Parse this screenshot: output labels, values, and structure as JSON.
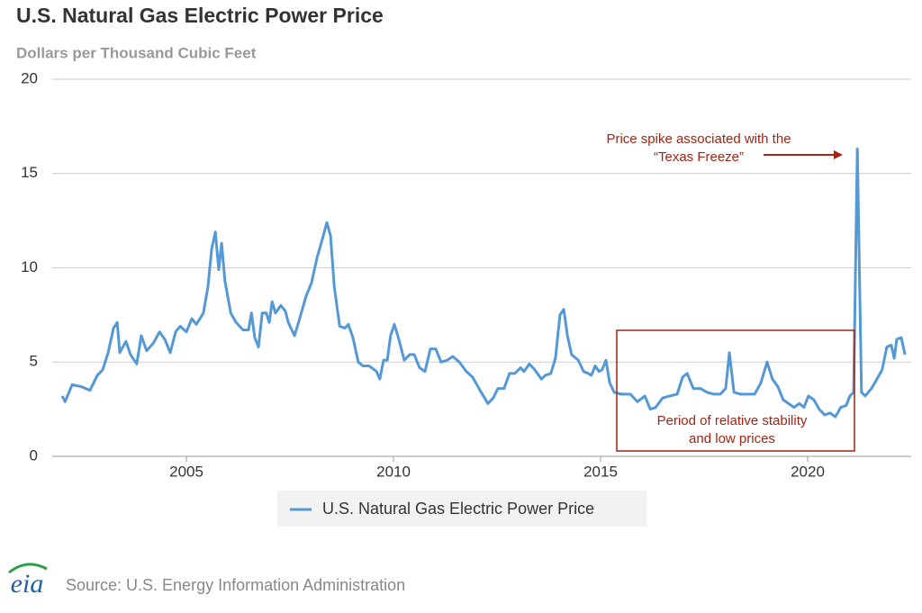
{
  "chart_data": {
    "type": "line",
    "title": "U.S. Natural Gas Electric Power Price",
    "subtitle": "Dollars per Thousand Cubic Feet",
    "source": "Source: U.S. Energy Information Administration",
    "logo": "eia",
    "annotations": [
      {
        "lines": [
          "Price spike associated with the",
          "“Texas Freeze”"
        ],
        "color": "#a32412"
      },
      {
        "lines": [
          "Period of relative stability",
          "and low prices"
        ],
        "color": "#a32412"
      }
    ],
    "xlim": [
      2001.76,
      2022.5
    ],
    "xticks": [
      2005,
      2010,
      2015,
      2020
    ],
    "ylim": [
      0,
      20
    ],
    "yticks": [
      0,
      5,
      10,
      15,
      20
    ],
    "grid": true,
    "legend": "bottom",
    "x": [
      2002.0,
      2002.07,
      2002.24,
      2002.46,
      2002.67,
      2002.85,
      2002.98,
      2003.11,
      2003.24,
      2003.33,
      2003.39,
      2003.54,
      2003.65,
      2003.8,
      2003.91,
      2004.04,
      2004.2,
      2004.35,
      2004.48,
      2004.61,
      2004.74,
      2004.85,
      2005.0,
      2005.13,
      2005.24,
      2005.41,
      2005.52,
      2005.61,
      2005.7,
      2005.78,
      2005.85,
      2005.93,
      2006.07,
      2006.2,
      2006.37,
      2006.5,
      2006.57,
      2006.65,
      2006.74,
      2006.83,
      2006.93,
      2007.0,
      2007.07,
      2007.15,
      2007.28,
      2007.39,
      2007.46,
      2007.61,
      2007.72,
      2007.89,
      2008.02,
      2008.15,
      2008.28,
      2008.39,
      2008.48,
      2008.57,
      2008.7,
      2008.83,
      2008.91,
      2009.02,
      2009.15,
      2009.26,
      2009.41,
      2009.59,
      2009.67,
      2009.76,
      2009.85,
      2009.93,
      2010.02,
      2010.13,
      2010.26,
      2010.39,
      2010.5,
      2010.63,
      2010.76,
      2010.89,
      2011.02,
      2011.15,
      2011.3,
      2011.43,
      2011.59,
      2011.76,
      2011.91,
      2012.09,
      2012.2,
      2012.28,
      2012.41,
      2012.52,
      2012.67,
      2012.8,
      2012.93,
      2013.07,
      2013.15,
      2013.28,
      2013.41,
      2013.57,
      2013.67,
      2013.8,
      2013.91,
      2014.02,
      2014.11,
      2014.2,
      2014.3,
      2014.46,
      2014.59,
      2014.7,
      2014.78,
      2014.87,
      2014.96,
      2015.04,
      2015.13,
      2015.22,
      2015.33,
      2015.5,
      2015.72,
      2015.89,
      2016.07,
      2016.2,
      2016.33,
      2016.5,
      2016.67,
      2016.85,
      2016.98,
      2017.09,
      2017.24,
      2017.41,
      2017.57,
      2017.72,
      2017.89,
      2018.02,
      2018.11,
      2018.22,
      2018.37,
      2018.54,
      2018.72,
      2018.87,
      2019.02,
      2019.15,
      2019.28,
      2019.41,
      2019.54,
      2019.67,
      2019.8,
      2019.91,
      2020.02,
      2020.15,
      2020.28,
      2020.41,
      2020.54,
      2020.67,
      2020.8,
      2020.93,
      2021.02,
      2021.11,
      2021.2,
      2021.3,
      2021.39,
      2021.54,
      2021.7,
      2021.8,
      2021.91,
      2022.02,
      2022.09,
      2022.15,
      2022.26,
      2022.35
    ],
    "series": [
      {
        "name": "U.S. Natural Gas Electric Power Price",
        "color": "#5498d6",
        "values": [
          3.2,
          2.9,
          3.8,
          3.7,
          3.5,
          4.3,
          4.6,
          5.5,
          6.8,
          7.1,
          5.5,
          6.1,
          5.4,
          4.9,
          6.4,
          5.6,
          6.0,
          6.6,
          6.2,
          5.5,
          6.6,
          6.9,
          6.6,
          7.3,
          7.0,
          7.6,
          9.0,
          11.0,
          11.9,
          9.9,
          11.3,
          9.3,
          7.6,
          7.1,
          6.7,
          6.7,
          7.6,
          6.3,
          5.8,
          7.6,
          7.6,
          7.1,
          8.2,
          7.6,
          8.0,
          7.7,
          7.1,
          6.4,
          7.2,
          8.5,
          9.2,
          10.5,
          11.5,
          12.4,
          11.7,
          9.0,
          6.9,
          6.8,
          7.0,
          6.3,
          5.0,
          4.8,
          4.8,
          4.5,
          4.1,
          5.1,
          5.1,
          6.4,
          7.0,
          6.2,
          5.1,
          5.4,
          5.4,
          4.7,
          4.5,
          5.7,
          5.7,
          5.0,
          5.1,
          5.3,
          5.0,
          4.5,
          4.2,
          3.5,
          3.1,
          2.8,
          3.1,
          3.6,
          3.6,
          4.4,
          4.4,
          4.7,
          4.5,
          4.9,
          4.6,
          4.1,
          4.3,
          4.4,
          5.2,
          7.5,
          7.8,
          6.4,
          5.4,
          5.1,
          4.5,
          4.4,
          4.3,
          4.8,
          4.5,
          4.6,
          5.1,
          3.9,
          3.4,
          3.3,
          3.3,
          2.9,
          3.2,
          2.5,
          2.6,
          3.1,
          3.2,
          3.3,
          4.2,
          4.4,
          3.6,
          3.6,
          3.4,
          3.3,
          3.3,
          3.6,
          5.5,
          3.4,
          3.3,
          3.3,
          3.3,
          3.9,
          5.0,
          4.1,
          3.7,
          3.0,
          2.8,
          2.6,
          2.8,
          2.6,
          3.2,
          3.0,
          2.5,
          2.2,
          2.3,
          2.1,
          2.6,
          2.7,
          3.2,
          3.4,
          16.3,
          3.4,
          3.2,
          3.6,
          4.2,
          4.6,
          5.8,
          5.9,
          5.2,
          6.2,
          6.3,
          5.4
        ]
      }
    ]
  }
}
